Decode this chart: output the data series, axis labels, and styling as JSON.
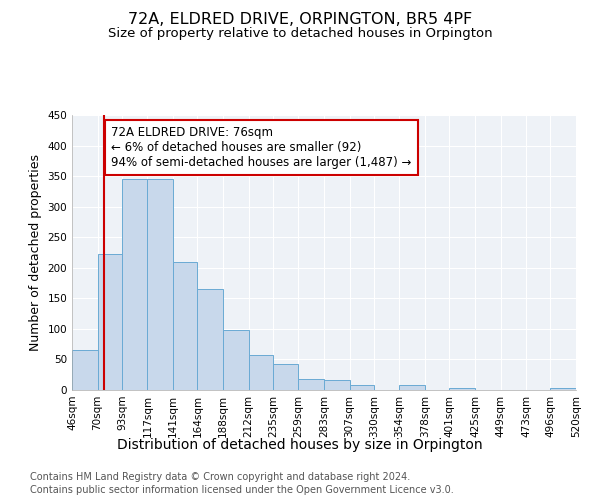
{
  "title": "72A, ELDRED DRIVE, ORPINGTON, BR5 4PF",
  "subtitle": "Size of property relative to detached houses in Orpington",
  "xlabel": "Distribution of detached houses by size in Orpington",
  "ylabel": "Number of detached properties",
  "bin_labels": [
    "46sqm",
    "70sqm",
    "93sqm",
    "117sqm",
    "141sqm",
    "164sqm",
    "188sqm",
    "212sqm",
    "235sqm",
    "259sqm",
    "283sqm",
    "307sqm",
    "330sqm",
    "354sqm",
    "378sqm",
    "401sqm",
    "425sqm",
    "449sqm",
    "473sqm",
    "496sqm",
    "520sqm"
  ],
  "bin_edges": [
    46,
    70,
    93,
    117,
    141,
    164,
    188,
    212,
    235,
    259,
    283,
    307,
    330,
    354,
    378,
    401,
    425,
    449,
    473,
    496,
    520
  ],
  "bar_heights": [
    65,
    222,
    345,
    345,
    210,
    165,
    98,
    57,
    42,
    18,
    17,
    8,
    0,
    8,
    0,
    4,
    0,
    0,
    0,
    3
  ],
  "bar_color": "#c8d8eb",
  "bar_edge_color": "#6aaad4",
  "property_line_x": 76,
  "vline_color": "#cc0000",
  "annotation_text": "72A ELDRED DRIVE: 76sqm\n← 6% of detached houses are smaller (92)\n94% of semi-detached houses are larger (1,487) →",
  "annotation_box_facecolor": "#ffffff",
  "annotation_box_edge_color": "#cc0000",
  "ylim": [
    0,
    450
  ],
  "yticks": [
    0,
    50,
    100,
    150,
    200,
    250,
    300,
    350,
    400,
    450
  ],
  "background_color": "#ffffff",
  "plot_bg_color": "#eef2f7",
  "grid_color": "#ffffff",
  "footer_line1": "Contains HM Land Registry data © Crown copyright and database right 2024.",
  "footer_line2": "Contains public sector information licensed under the Open Government Licence v3.0.",
  "title_fontsize": 11.5,
  "subtitle_fontsize": 9.5,
  "xlabel_fontsize": 10,
  "ylabel_fontsize": 9,
  "tick_fontsize": 7.5,
  "annotation_fontsize": 8.5,
  "footer_fontsize": 7
}
